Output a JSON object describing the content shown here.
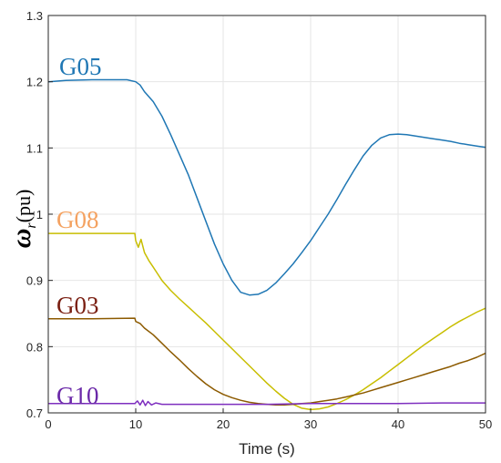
{
  "chart_data": {
    "type": "line",
    "title": "",
    "xlabel": "Time (s)",
    "ylabel": {
      "symbol": "ω",
      "subscript": "r",
      "unit": "(pu)"
    },
    "xlim": [
      0,
      50
    ],
    "ylim": [
      0.7,
      1.3
    ],
    "xticks": [
      "0",
      "10",
      "20",
      "30",
      "40",
      "50"
    ],
    "yticks": [
      "0.7",
      "0.8",
      "0.9",
      "1",
      "1.1",
      "1.2",
      "1.3"
    ],
    "grid": true,
    "series": [
      {
        "name": "G05",
        "color": "#1f77b4",
        "label_color": "#1f77b4",
        "points": [
          [
            0,
            1.2
          ],
          [
            2,
            1.202
          ],
          [
            5,
            1.203
          ],
          [
            9,
            1.203
          ],
          [
            10,
            1.2
          ],
          [
            10.5,
            1.195
          ],
          [
            11,
            1.185
          ],
          [
            12,
            1.17
          ],
          [
            13,
            1.148
          ],
          [
            14,
            1.12
          ],
          [
            15,
            1.09
          ],
          [
            16,
            1.06
          ],
          [
            17,
            1.025
          ],
          [
            18,
            0.99
          ],
          [
            19,
            0.955
          ],
          [
            20,
            0.925
          ],
          [
            21,
            0.9
          ],
          [
            22,
            0.882
          ],
          [
            23,
            0.878
          ],
          [
            24,
            0.879
          ],
          [
            25,
            0.885
          ],
          [
            26,
            0.896
          ],
          [
            27,
            0.91
          ],
          [
            28,
            0.925
          ],
          [
            29,
            0.942
          ],
          [
            30,
            0.96
          ],
          [
            31,
            0.98
          ],
          [
            32,
            1.0
          ],
          [
            33,
            1.022
          ],
          [
            34,
            1.045
          ],
          [
            35,
            1.067
          ],
          [
            36,
            1.088
          ],
          [
            37,
            1.104
          ],
          [
            38,
            1.115
          ],
          [
            39,
            1.12
          ],
          [
            40,
            1.121
          ],
          [
            41,
            1.12
          ],
          [
            42,
            1.118
          ],
          [
            43,
            1.116
          ],
          [
            44,
            1.114
          ],
          [
            45,
            1.112
          ],
          [
            46,
            1.11
          ],
          [
            47,
            1.107
          ],
          [
            48,
            1.105
          ],
          [
            49,
            1.103
          ],
          [
            50,
            1.101
          ]
        ]
      },
      {
        "name": "G08",
        "color": "#c8be00",
        "label_color": "#f4a261",
        "points": [
          [
            0,
            0.971
          ],
          [
            5,
            0.971
          ],
          [
            9.9,
            0.971
          ],
          [
            10,
            0.96
          ],
          [
            10.3,
            0.95
          ],
          [
            10.6,
            0.962
          ],
          [
            11,
            0.942
          ],
          [
            11.5,
            0.93
          ],
          [
            12,
            0.92
          ],
          [
            12.5,
            0.91
          ],
          [
            13,
            0.9
          ],
          [
            14,
            0.885
          ],
          [
            15,
            0.872
          ],
          [
            16,
            0.86
          ],
          [
            17,
            0.848
          ],
          [
            18,
            0.836
          ],
          [
            19,
            0.823
          ],
          [
            20,
            0.81
          ],
          [
            21,
            0.797
          ],
          [
            22,
            0.784
          ],
          [
            23,
            0.771
          ],
          [
            24,
            0.758
          ],
          [
            25,
            0.745
          ],
          [
            26,
            0.733
          ],
          [
            27,
            0.722
          ],
          [
            28,
            0.713
          ],
          [
            29,
            0.707
          ],
          [
            30,
            0.705
          ],
          [
            31,
            0.706
          ],
          [
            32,
            0.709
          ],
          [
            33,
            0.714
          ],
          [
            34,
            0.72
          ],
          [
            35,
            0.727
          ],
          [
            36,
            0.735
          ],
          [
            37,
            0.744
          ],
          [
            38,
            0.753
          ],
          [
            39,
            0.763
          ],
          [
            40,
            0.773
          ],
          [
            41,
            0.783
          ],
          [
            42,
            0.793
          ],
          [
            43,
            0.803
          ],
          [
            44,
            0.812
          ],
          [
            45,
            0.821
          ],
          [
            46,
            0.83
          ],
          [
            47,
            0.838
          ],
          [
            48,
            0.845
          ],
          [
            49,
            0.852
          ],
          [
            50,
            0.858
          ]
        ]
      },
      {
        "name": "G03",
        "color": "#8c5a00",
        "label_color": "#7a1f12",
        "points": [
          [
            0,
            0.842
          ],
          [
            5,
            0.842
          ],
          [
            9.9,
            0.843
          ],
          [
            10,
            0.838
          ],
          [
            10.5,
            0.835
          ],
          [
            11,
            0.828
          ],
          [
            12,
            0.818
          ],
          [
            13,
            0.805
          ],
          [
            14,
            0.792
          ],
          [
            15,
            0.78
          ],
          [
            16,
            0.767
          ],
          [
            17,
            0.755
          ],
          [
            18,
            0.744
          ],
          [
            19,
            0.735
          ],
          [
            20,
            0.728
          ],
          [
            21,
            0.723
          ],
          [
            22,
            0.719
          ],
          [
            23,
            0.716
          ],
          [
            24,
            0.714
          ],
          [
            25,
            0.713
          ],
          [
            26,
            0.712
          ],
          [
            27,
            0.712
          ],
          [
            28,
            0.713
          ],
          [
            29,
            0.714
          ],
          [
            30,
            0.715
          ],
          [
            31,
            0.717
          ],
          [
            32,
            0.719
          ],
          [
            33,
            0.721
          ],
          [
            34,
            0.724
          ],
          [
            35,
            0.727
          ],
          [
            36,
            0.73
          ],
          [
            37,
            0.734
          ],
          [
            38,
            0.738
          ],
          [
            39,
            0.742
          ],
          [
            40,
            0.746
          ],
          [
            41,
            0.75
          ],
          [
            42,
            0.754
          ],
          [
            43,
            0.758
          ],
          [
            44,
            0.762
          ],
          [
            45,
            0.766
          ],
          [
            46,
            0.77
          ],
          [
            47,
            0.775
          ],
          [
            48,
            0.779
          ],
          [
            49,
            0.784
          ],
          [
            50,
            0.79
          ]
        ]
      },
      {
        "name": "G10",
        "color": "#7e2fbf",
        "label_color": "#6a28a8",
        "points": [
          [
            0,
            0.714
          ],
          [
            5,
            0.714
          ],
          [
            9.9,
            0.714
          ],
          [
            10.2,
            0.718
          ],
          [
            10.5,
            0.712
          ],
          [
            10.8,
            0.719
          ],
          [
            11.1,
            0.711
          ],
          [
            11.4,
            0.717
          ],
          [
            11.8,
            0.712
          ],
          [
            12.3,
            0.715
          ],
          [
            13,
            0.713
          ],
          [
            15,
            0.713
          ],
          [
            20,
            0.713
          ],
          [
            25,
            0.713
          ],
          [
            30,
            0.714
          ],
          [
            35,
            0.714
          ],
          [
            40,
            0.714
          ],
          [
            45,
            0.715
          ],
          [
            50,
            0.715
          ]
        ]
      }
    ]
  }
}
